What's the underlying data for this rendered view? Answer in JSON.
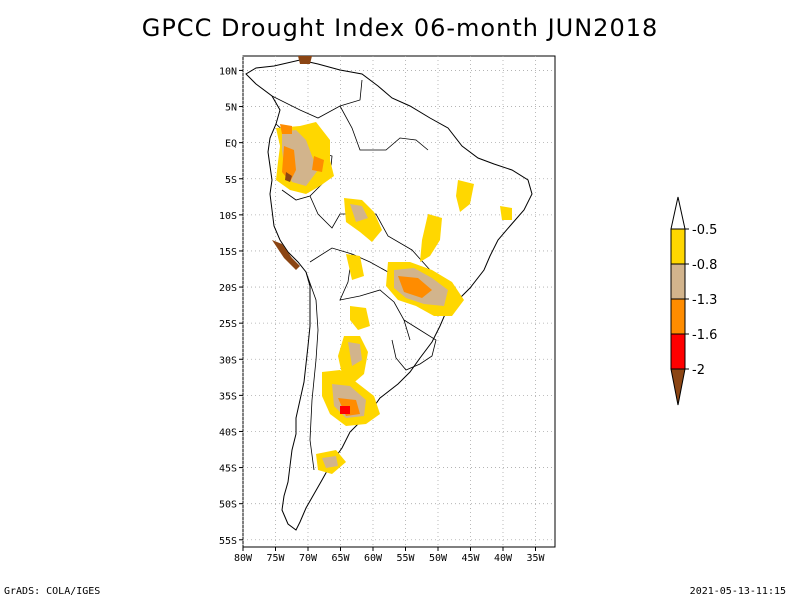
{
  "title": "GPCC Drought Index 06-month JUN2018",
  "footer": {
    "left": "GrADS: COLA/IGES",
    "right": "2021-05-13-11:15"
  },
  "map": {
    "lon_range": [
      -80,
      -32
    ],
    "lat_range": [
      -56,
      12
    ],
    "lon_ticks": [
      {
        "lon": -80,
        "label": "80W"
      },
      {
        "lon": -75,
        "label": "75W"
      },
      {
        "lon": -70,
        "label": "70W"
      },
      {
        "lon": -65,
        "label": "65W"
      },
      {
        "lon": -60,
        "label": "60W"
      },
      {
        "lon": -55,
        "label": "55W"
      },
      {
        "lon": -50,
        "label": "50W"
      },
      {
        "lon": -45,
        "label": "45W"
      },
      {
        "lon": -40,
        "label": "40W"
      },
      {
        "lon": -35,
        "label": "35W"
      }
    ],
    "lat_ticks": [
      {
        "lat": 10,
        "label": "10N"
      },
      {
        "lat": 5,
        "label": "5N"
      },
      {
        "lat": 0,
        "label": "EQ"
      },
      {
        "lat": -5,
        "label": "5S"
      },
      {
        "lat": -10,
        "label": "10S"
      },
      {
        "lat": -15,
        "label": "15S"
      },
      {
        "lat": -20,
        "label": "20S"
      },
      {
        "lat": -25,
        "label": "25S"
      },
      {
        "lat": -30,
        "label": "30S"
      },
      {
        "lat": -35,
        "label": "35S"
      },
      {
        "lat": -40,
        "label": "40S"
      },
      {
        "lat": -45,
        "label": "45S"
      },
      {
        "lat": -50,
        "label": "50S"
      },
      {
        "lat": -55,
        "label": "55S"
      }
    ]
  },
  "legend": {
    "labels": [
      "-0.5",
      "-0.8",
      "-1.3",
      "-1.6",
      "-2"
    ],
    "colors": [
      "#ffffff",
      "#ffd700",
      "#d2b48c",
      "#ff8c00",
      "#ff0000",
      "#8b4513"
    ]
  }
}
